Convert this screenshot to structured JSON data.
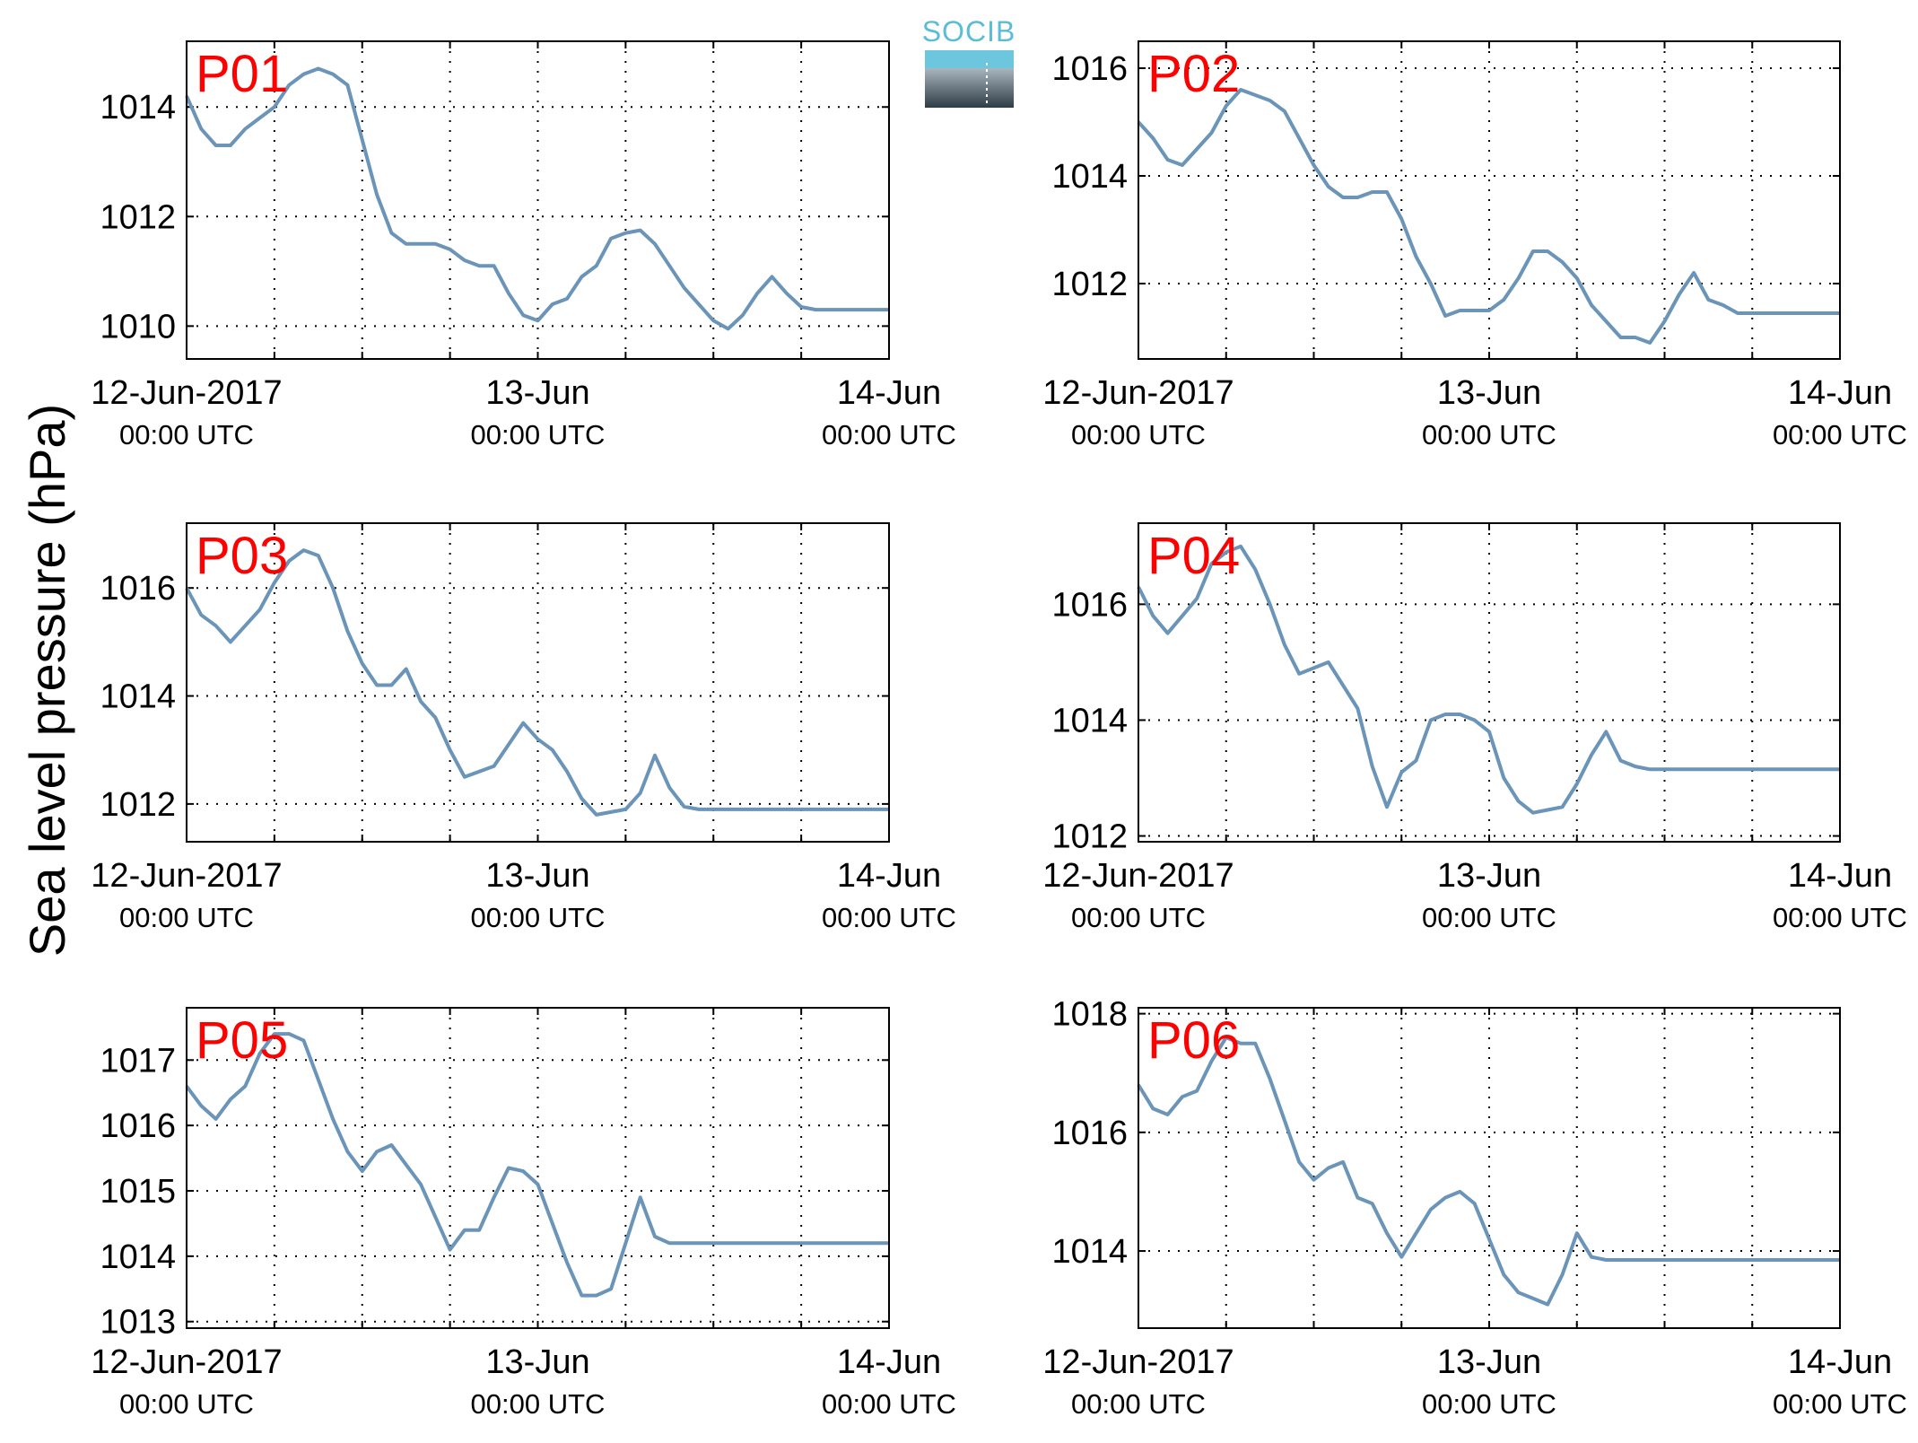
{
  "ylabel": "Sea level pressure (hPa)",
  "logo": {
    "text": "SOCIB"
  },
  "colors": {
    "line": "#6a94b8",
    "panel_label": "#ff0000",
    "logo_text": "#5bbcd6"
  },
  "x_ticks": [
    {
      "t": 0,
      "label": "12-Jun-2017",
      "sub": "00:00 UTC"
    },
    {
      "t": 24,
      "label": "13-Jun",
      "sub": "00:00 UTC"
    },
    {
      "t": 48,
      "label": "14-Jun",
      "sub": "00:00 UTC"
    }
  ],
  "chart_data": [
    {
      "type": "line",
      "label": "P01",
      "grid": true,
      "xlim": [
        "2017-06-12 00:00",
        "2017-06-14 00:00"
      ],
      "x_hours": [
        0,
        1,
        2,
        3,
        4,
        5,
        6,
        7,
        8,
        9,
        10,
        11,
        12,
        13,
        14,
        15,
        16,
        17,
        18,
        19,
        20,
        21,
        22,
        23,
        24,
        25,
        26,
        27,
        28,
        29,
        30,
        31,
        32,
        33,
        34,
        35,
        36,
        37,
        38,
        39,
        40,
        41,
        42,
        43,
        44,
        45,
        46,
        47,
        48
      ],
      "ylim": [
        1009.4,
        1015.2
      ],
      "yticks": [
        1010,
        1012,
        1014
      ],
      "values": [
        1014.2,
        1013.6,
        1013.3,
        1013.3,
        1013.6,
        1013.8,
        1014.0,
        1014.4,
        1014.6,
        1014.7,
        1014.6,
        1014.4,
        1013.4,
        1012.4,
        1011.7,
        1011.5,
        1011.5,
        1011.5,
        1011.4,
        1011.2,
        1011.1,
        1011.1,
        1010.6,
        1010.2,
        1010.1,
        1010.4,
        1010.5,
        1010.9,
        1011.1,
        1011.6,
        1011.7,
        1011.75,
        1011.5,
        1011.1,
        1010.7,
        1010.4,
        1010.1,
        1009.95,
        1010.2,
        1010.6,
        1010.9,
        1010.6,
        1010.35,
        1010.3,
        1010.3,
        1010.3,
        1010.3,
        1010.3,
        1010.3
      ]
    },
    {
      "type": "line",
      "label": "P02",
      "grid": true,
      "xlim": [
        "2017-06-12 00:00",
        "2017-06-14 00:00"
      ],
      "x_hours": [
        0,
        1,
        2,
        3,
        4,
        5,
        6,
        7,
        8,
        9,
        10,
        11,
        12,
        13,
        14,
        15,
        16,
        17,
        18,
        19,
        20,
        21,
        22,
        23,
        24,
        25,
        26,
        27,
        28,
        29,
        30,
        31,
        32,
        33,
        34,
        35,
        36,
        37,
        38,
        39,
        40,
        41,
        42,
        43,
        44,
        45,
        46,
        47,
        48
      ],
      "ylim": [
        1010.6,
        1016.5
      ],
      "yticks": [
        1012,
        1014,
        1016
      ],
      "values": [
        1015.0,
        1014.7,
        1014.3,
        1014.2,
        1014.5,
        1014.8,
        1015.3,
        1015.6,
        1015.5,
        1015.4,
        1015.2,
        1014.7,
        1014.2,
        1013.8,
        1013.6,
        1013.6,
        1013.7,
        1013.7,
        1013.2,
        1012.5,
        1012.0,
        1011.4,
        1011.5,
        1011.5,
        1011.5,
        1011.7,
        1012.1,
        1012.6,
        1012.6,
        1012.4,
        1012.1,
        1011.6,
        1011.3,
        1011.0,
        1011.0,
        1010.9,
        1011.3,
        1011.8,
        1012.2,
        1011.7,
        1011.6,
        1011.45,
        1011.45,
        1011.45,
        1011.45,
        1011.45,
        1011.45,
        1011.45,
        1011.45
      ]
    },
    {
      "type": "line",
      "label": "P03",
      "grid": true,
      "xlim": [
        "2017-06-12 00:00",
        "2017-06-14 00:00"
      ],
      "x_hours": [
        0,
        1,
        2,
        3,
        4,
        5,
        6,
        7,
        8,
        9,
        10,
        11,
        12,
        13,
        14,
        15,
        16,
        17,
        18,
        19,
        20,
        21,
        22,
        23,
        24,
        25,
        26,
        27,
        28,
        29,
        30,
        31,
        32,
        33,
        34,
        35,
        36,
        37,
        38,
        39,
        40,
        41,
        42,
        43,
        44,
        45,
        46,
        47,
        48
      ],
      "ylim": [
        1011.3,
        1017.2
      ],
      "yticks": [
        1012,
        1014,
        1016
      ],
      "values": [
        1016.0,
        1015.5,
        1015.3,
        1015.0,
        1015.3,
        1015.6,
        1016.1,
        1016.5,
        1016.7,
        1016.6,
        1016.0,
        1015.2,
        1014.6,
        1014.2,
        1014.2,
        1014.5,
        1013.9,
        1013.6,
        1013.0,
        1012.5,
        1012.6,
        1012.7,
        1013.1,
        1013.5,
        1013.2,
        1013.0,
        1012.6,
        1012.1,
        1011.8,
        1011.85,
        1011.9,
        1012.2,
        1012.9,
        1012.3,
        1011.95,
        1011.9,
        1011.9,
        1011.9,
        1011.9,
        1011.9,
        1011.9,
        1011.9,
        1011.9,
        1011.9,
        1011.9,
        1011.9,
        1011.9,
        1011.9,
        1011.9
      ]
    },
    {
      "type": "line",
      "label": "P04",
      "grid": true,
      "xlim": [
        "2017-06-12 00:00",
        "2017-06-14 00:00"
      ],
      "x_hours": [
        0,
        1,
        2,
        3,
        4,
        5,
        6,
        7,
        8,
        9,
        10,
        11,
        12,
        13,
        14,
        15,
        16,
        17,
        18,
        19,
        20,
        21,
        22,
        23,
        24,
        25,
        26,
        27,
        28,
        29,
        30,
        31,
        32,
        33,
        34,
        35,
        36,
        37,
        38,
        39,
        40,
        41,
        42,
        43,
        44,
        45,
        46,
        47,
        48
      ],
      "ylim": [
        1011.9,
        1017.4
      ],
      "yticks": [
        1012,
        1014,
        1016
      ],
      "values": [
        1016.3,
        1015.8,
        1015.5,
        1015.8,
        1016.1,
        1016.7,
        1016.9,
        1017.0,
        1016.6,
        1016.0,
        1015.3,
        1014.8,
        1014.9,
        1015.0,
        1014.6,
        1014.2,
        1013.2,
        1012.5,
        1013.1,
        1013.3,
        1014.0,
        1014.1,
        1014.1,
        1014.0,
        1013.8,
        1013.0,
        1012.6,
        1012.4,
        1012.45,
        1012.5,
        1012.9,
        1013.4,
        1013.8,
        1013.3,
        1013.2,
        1013.15,
        1013.15,
        1013.15,
        1013.15,
        1013.15,
        1013.15,
        1013.15,
        1013.15,
        1013.15,
        1013.15,
        1013.15,
        1013.15,
        1013.15,
        1013.15
      ]
    },
    {
      "type": "line",
      "label": "P05",
      "grid": true,
      "xlim": [
        "2017-06-12 00:00",
        "2017-06-14 00:00"
      ],
      "x_hours": [
        0,
        1,
        2,
        3,
        4,
        5,
        6,
        7,
        8,
        9,
        10,
        11,
        12,
        13,
        14,
        15,
        16,
        17,
        18,
        19,
        20,
        21,
        22,
        23,
        24,
        25,
        26,
        27,
        28,
        29,
        30,
        31,
        32,
        33,
        34,
        35,
        36,
        37,
        38,
        39,
        40,
        41,
        42,
        43,
        44,
        45,
        46,
        47,
        48
      ],
      "ylim": [
        1012.9,
        1017.8
      ],
      "yticks": [
        1013,
        1014,
        1015,
        1016,
        1017
      ],
      "values": [
        1016.6,
        1016.3,
        1016.1,
        1016.4,
        1016.6,
        1017.1,
        1017.4,
        1017.4,
        1017.3,
        1016.7,
        1016.1,
        1015.6,
        1015.3,
        1015.6,
        1015.7,
        1015.4,
        1015.1,
        1014.6,
        1014.1,
        1014.4,
        1014.4,
        1014.9,
        1015.35,
        1015.3,
        1015.1,
        1014.5,
        1013.9,
        1013.4,
        1013.4,
        1013.5,
        1014.2,
        1014.9,
        1014.3,
        1014.2,
        1014.2,
        1014.2,
        1014.2,
        1014.2,
        1014.2,
        1014.2,
        1014.2,
        1014.2,
        1014.2,
        1014.2,
        1014.2,
        1014.2,
        1014.2,
        1014.2,
        1014.2
      ]
    },
    {
      "type": "line",
      "label": "P06",
      "grid": true,
      "xlim": [
        "2017-06-12 00:00",
        "2017-06-14 00:00"
      ],
      "x_hours": [
        0,
        1,
        2,
        3,
        4,
        5,
        6,
        7,
        8,
        9,
        10,
        11,
        12,
        13,
        14,
        15,
        16,
        17,
        18,
        19,
        20,
        21,
        22,
        23,
        24,
        25,
        26,
        27,
        28,
        29,
        30,
        31,
        32,
        33,
        34,
        35,
        36,
        37,
        38,
        39,
        40,
        41,
        42,
        43,
        44,
        45,
        46,
        47,
        48
      ],
      "ylim": [
        1012.7,
        1018.1
      ],
      "yticks": [
        1014,
        1016,
        1018
      ],
      "values": [
        1016.8,
        1016.4,
        1016.3,
        1016.6,
        1016.7,
        1017.2,
        1017.6,
        1017.5,
        1017.5,
        1016.9,
        1016.2,
        1015.5,
        1015.2,
        1015.4,
        1015.5,
        1014.9,
        1014.8,
        1014.3,
        1013.9,
        1014.3,
        1014.7,
        1014.9,
        1015.0,
        1014.8,
        1014.2,
        1013.6,
        1013.3,
        1013.2,
        1013.1,
        1013.6,
        1014.3,
        1013.9,
        1013.85,
        1013.85,
        1013.85,
        1013.85,
        1013.85,
        1013.85,
        1013.85,
        1013.85,
        1013.85,
        1013.85,
        1013.85,
        1013.85,
        1013.85,
        1013.85,
        1013.85,
        1013.85,
        1013.85
      ]
    }
  ]
}
